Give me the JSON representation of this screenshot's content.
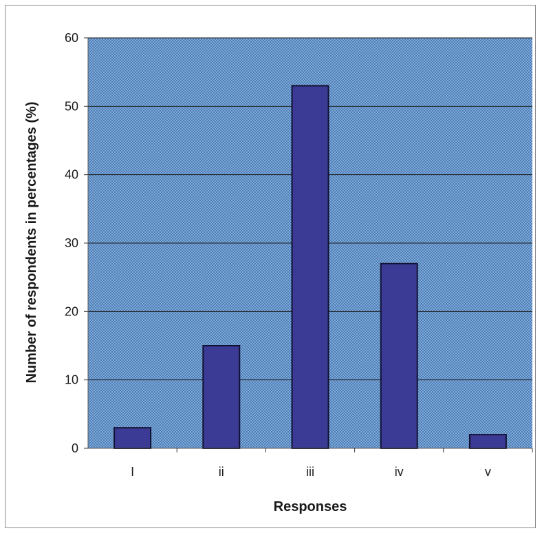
{
  "chart_data": {
    "type": "bar",
    "title": "",
    "xlabel": "Responses",
    "ylabel": "Number of respondents in percentages (%)",
    "categories": [
      "I",
      "ii",
      "iii",
      "iv",
      "v"
    ],
    "values": [
      3,
      15,
      53,
      27,
      2
    ],
    "ylim": [
      0,
      60
    ],
    "yticks": [
      "0",
      "10",
      "20",
      "30",
      "40",
      "50",
      "60"
    ],
    "grid": true,
    "legend": "none",
    "colors": {
      "bar_fill": "#3b3b96",
      "bar_stroke": "#111133",
      "plot_background": "#6f9fd0",
      "gridline": "#1a1a1a"
    }
  }
}
